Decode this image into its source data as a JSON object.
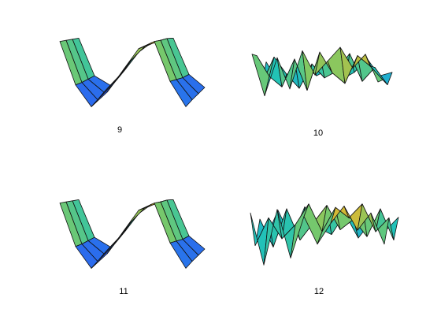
{
  "figure": {
    "background": "#ffffff",
    "colormap": [
      "#3e26a8",
      "#2e5df0",
      "#1fa2e0",
      "#22c3b5",
      "#7ec965",
      "#e8b52a",
      "#f9fb0e"
    ]
  },
  "chart_data": [
    {
      "type": "surface",
      "label": "9",
      "shape": "zigzag ridge",
      "z_grid": [
        [
          0.95,
          0.35,
          0.05,
          0.25,
          0.55,
          0.85,
          0.95,
          0.4,
          0.05
        ],
        [
          0.9,
          0.32,
          0.08,
          0.3,
          0.6,
          0.82,
          0.9,
          0.36,
          0.08
        ],
        [
          0.85,
          0.3,
          0.12,
          0.34,
          0.64,
          0.8,
          0.86,
          0.32,
          0.1
        ],
        [
          0.8,
          0.28,
          0.15,
          0.38,
          0.66,
          0.76,
          0.8,
          0.3,
          0.12
        ]
      ]
    },
    {
      "type": "surface",
      "label": "10",
      "shape": "noisy bars",
      "z_grid": [
        [
          0.9,
          0.3,
          0.85,
          0.4,
          0.95,
          0.6,
          0.8,
          1.0,
          0.7,
          0.9,
          0.5
        ],
        [
          0.8,
          0.5,
          0.35,
          0.75,
          0.3,
          0.85,
          0.55,
          0.4,
          0.8,
          0.65,
          0.45
        ],
        [
          0.3,
          0.7,
          0.45,
          0.25,
          0.6,
          0.4,
          0.5,
          0.75,
          0.35,
          0.55,
          0.3
        ],
        [
          0.55,
          0.25,
          0.4,
          0.5,
          0.35,
          0.45,
          0.3,
          0.4,
          0.6,
          0.35,
          0.4
        ]
      ]
    },
    {
      "type": "surface",
      "label": "11",
      "shape": "zigzag ridge",
      "z_grid": [
        [
          0.95,
          0.35,
          0.05,
          0.25,
          0.55,
          0.85,
          0.95,
          0.4,
          0.05
        ],
        [
          0.9,
          0.32,
          0.08,
          0.3,
          0.6,
          0.82,
          0.9,
          0.36,
          0.08
        ],
        [
          0.85,
          0.3,
          0.12,
          0.34,
          0.64,
          0.8,
          0.86,
          0.32,
          0.1
        ],
        [
          0.8,
          0.28,
          0.15,
          0.38,
          0.66,
          0.76,
          0.8,
          0.3,
          0.12
        ]
      ]
    },
    {
      "type": "surface",
      "label": "12",
      "shape": "noisy grid",
      "z_grid": [
        [
          0.85,
          0.1,
          0.9,
          0.2,
          0.8,
          0.4,
          0.7,
          0.95,
          0.6,
          0.85,
          0.4
        ],
        [
          0.3,
          0.7,
          0.4,
          0.6,
          0.9,
          0.5,
          0.85,
          0.7,
          0.9,
          0.5,
          0.7
        ],
        [
          0.6,
          0.2,
          0.75,
          0.3,
          0.55,
          0.8,
          0.45,
          0.6,
          0.35,
          0.75,
          0.3
        ],
        [
          0.2,
          0.65,
          0.25,
          0.7,
          0.4,
          0.3,
          0.6,
          0.25,
          0.5,
          0.35,
          0.55
        ]
      ]
    }
  ]
}
